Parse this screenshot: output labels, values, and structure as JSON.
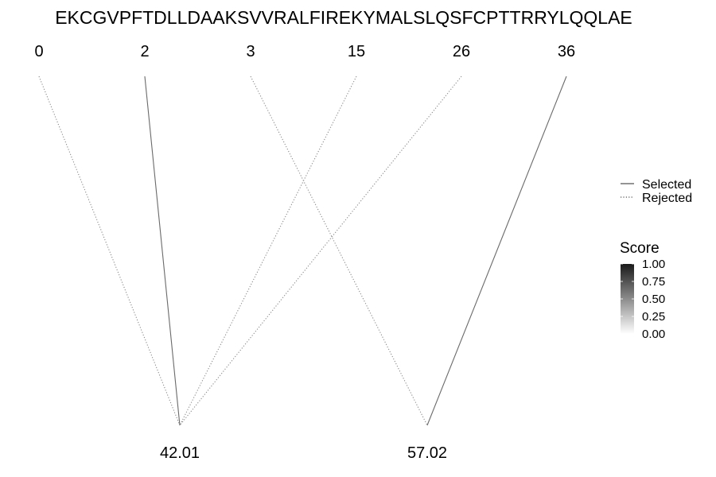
{
  "sequence": "EKCGVPFTDLLDAAKSVVRALFIREKYMALSLQSFCPTTRRYLQQLAE",
  "top_nodes": [
    {
      "label": "0"
    },
    {
      "label": "2"
    },
    {
      "label": "3"
    },
    {
      "label": "15"
    },
    {
      "label": "26"
    },
    {
      "label": "36"
    }
  ],
  "bottom_nodes": [
    {
      "label": "42.01"
    },
    {
      "label": "57.02"
    }
  ],
  "edges": [
    {
      "from": 0,
      "to": 0,
      "status": "rejected",
      "score": 0.5
    },
    {
      "from": 1,
      "to": 0,
      "status": "selected",
      "score": 0.6
    },
    {
      "from": 3,
      "to": 0,
      "status": "rejected",
      "score": 0.5
    },
    {
      "from": 4,
      "to": 0,
      "status": "rejected",
      "score": 0.5
    },
    {
      "from": 2,
      "to": 1,
      "status": "rejected",
      "score": 0.5
    },
    {
      "from": 5,
      "to": 1,
      "status": "selected",
      "score": 0.6
    }
  ],
  "legend": {
    "items": [
      {
        "label": "Selected",
        "style": "solid"
      },
      {
        "label": "Rejected",
        "style": "dotted"
      }
    ]
  },
  "score_scale": {
    "title": "Score",
    "ticks": [
      "1.00",
      "0.75",
      "0.50",
      "0.25",
      "0.00"
    ],
    "color_high": "#1a1a1a",
    "color_low": "#ffffff"
  }
}
